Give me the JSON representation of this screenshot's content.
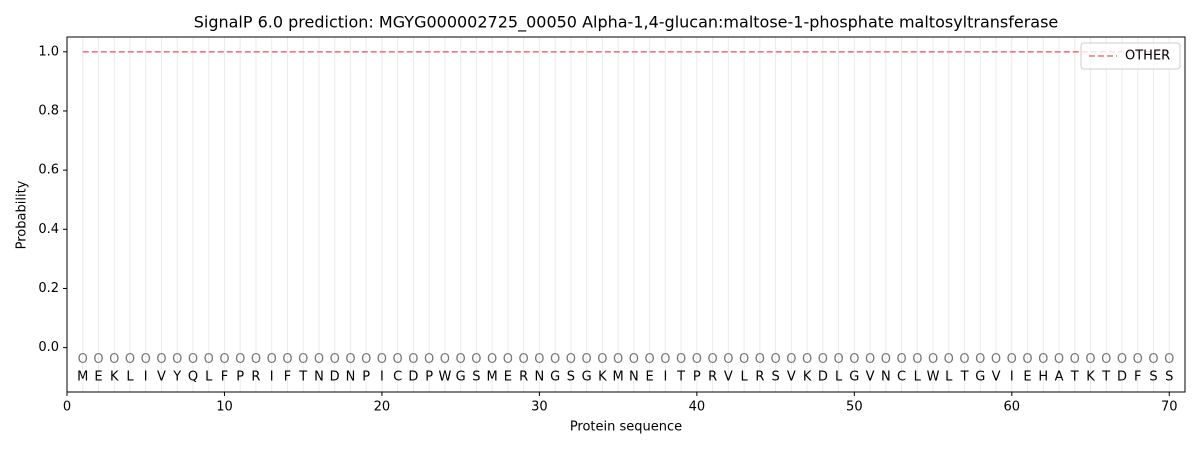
{
  "chart_data": {
    "type": "line",
    "title": "SignalP 6.0 prediction: MGYG000002725_00050 Alpha-1,4-glucan:maltose-1-phosphate maltosyltransferase",
    "xlabel": "Protein sequence",
    "ylabel": "Probability",
    "x": [
      1,
      2,
      3,
      4,
      5,
      6,
      7,
      8,
      9,
      10,
      11,
      12,
      13,
      14,
      15,
      16,
      17,
      18,
      19,
      20,
      21,
      22,
      23,
      24,
      25,
      26,
      27,
      28,
      29,
      30,
      31,
      32,
      33,
      34,
      35,
      36,
      37,
      38,
      39,
      40,
      41,
      42,
      43,
      44,
      45,
      46,
      47,
      48,
      49,
      50,
      51,
      52,
      53,
      54,
      55,
      56,
      57,
      58,
      59,
      60,
      61,
      62,
      63,
      64,
      65,
      66,
      67,
      68,
      69,
      70
    ],
    "sequence": [
      "M",
      "E",
      "K",
      "L",
      "I",
      "V",
      "Y",
      "Q",
      "L",
      "F",
      "P",
      "R",
      "I",
      "F",
      "T",
      "N",
      "D",
      "N",
      "P",
      "I",
      "C",
      "D",
      "P",
      "W",
      "G",
      "S",
      "M",
      "E",
      "R",
      "N",
      "G",
      "S",
      "G",
      "K",
      "M",
      "N",
      "E",
      "I",
      "T",
      "P",
      "R",
      "V",
      "L",
      "R",
      "S",
      "V",
      "K",
      "D",
      "L",
      "G",
      "V",
      "N",
      "C",
      "L",
      "W",
      "L",
      "T",
      "G",
      "V",
      "I",
      "E",
      "H",
      "A",
      "T",
      "K",
      "T",
      "D",
      "F",
      "S",
      "S"
    ],
    "predicted_labels": [
      "O",
      "O",
      "O",
      "O",
      "O",
      "O",
      "O",
      "O",
      "O",
      "O",
      "O",
      "O",
      "O",
      "O",
      "O",
      "O",
      "O",
      "O",
      "O",
      "O",
      "O",
      "O",
      "O",
      "O",
      "O",
      "O",
      "O",
      "O",
      "O",
      "O",
      "O",
      "O",
      "O",
      "O",
      "O",
      "O",
      "O",
      "O",
      "O",
      "O",
      "O",
      "O",
      "O",
      "O",
      "O",
      "O",
      "O",
      "O",
      "O",
      "O",
      "O",
      "O",
      "O",
      "O",
      "O",
      "O",
      "O",
      "O",
      "O",
      "O",
      "O",
      "O",
      "O",
      "O",
      "O",
      "O",
      "O",
      "O",
      "O",
      "O"
    ],
    "series": [
      {
        "name": "OTHER",
        "color": "#e8797a",
        "linestyle": "dashed",
        "values": [
          1,
          1,
          1,
          1,
          1,
          1,
          1,
          1,
          1,
          1,
          1,
          1,
          1,
          1,
          1,
          1,
          1,
          1,
          1,
          1,
          1,
          1,
          1,
          1,
          1,
          1,
          1,
          1,
          1,
          1,
          1,
          1,
          1,
          1,
          1,
          1,
          1,
          1,
          1,
          1,
          1,
          1,
          1,
          1,
          1,
          1,
          1,
          1,
          1,
          1,
          1,
          1,
          1,
          1,
          1,
          1,
          1,
          1,
          1,
          1,
          1,
          1,
          1,
          1,
          1,
          1,
          1,
          1,
          1,
          1
        ]
      }
    ],
    "xlim": [
      0,
      71
    ],
    "ylim": [
      -0.15,
      1.05
    ],
    "xticks": [
      0,
      10,
      20,
      30,
      40,
      50,
      60,
      70
    ],
    "yticks": [
      {
        "value": 0,
        "label": "0.0"
      },
      0.2,
      0.4,
      0.6,
      0.8,
      {
        "value": 1,
        "label": "1.0"
      }
    ],
    "grid": true,
    "legend": "upper right"
  }
}
